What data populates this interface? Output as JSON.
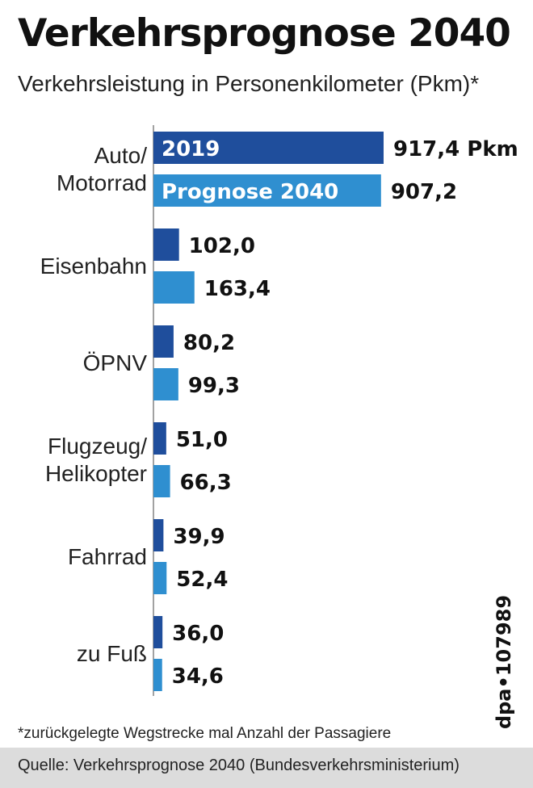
{
  "title": "Verkehrsprognose 2040",
  "subtitle": "Verkehrsleistung in Personenkilometer (Pkm)*",
  "footnote": "*zurückgelegte Wegstrecke mal Anzahl der Passagiere",
  "source": "Quelle: Verkehrsprognose 2040 (Bundesverkehrsministerium)",
  "credit": "dpa•107989",
  "colors": {
    "series_2019": "#1f4e9c",
    "series_2040": "#2f8fd0"
  },
  "chart_data": {
    "type": "bar",
    "orientation": "horizontal",
    "unit": "Pkm",
    "categories": [
      [
        "Auto/",
        "Motorrad"
      ],
      [
        "Eisenbahn"
      ],
      [
        "ÖPNV"
      ],
      [
        "Flugzeug/",
        "Helikopter"
      ],
      [
        "Fahrrad"
      ],
      [
        "zu Fuß"
      ]
    ],
    "series": [
      {
        "name": "2019",
        "values": [
          917.4,
          102.0,
          80.2,
          51.0,
          39.9,
          36.0
        ]
      },
      {
        "name": "Prognose 2040",
        "values": [
          907.2,
          163.4,
          99.3,
          66.3,
          52.4,
          34.6
        ]
      }
    ],
    "value_labels": [
      [
        "917,4 Pkm",
        "102,0",
        "80,2",
        "51,0",
        "39,9",
        "36,0"
      ],
      [
        "907,2",
        "163,4",
        "99,3",
        "66,3",
        "52,4",
        "34,6"
      ]
    ],
    "legend_placement": "inside-first-bars",
    "xlim": [
      0,
      917.4
    ]
  }
}
